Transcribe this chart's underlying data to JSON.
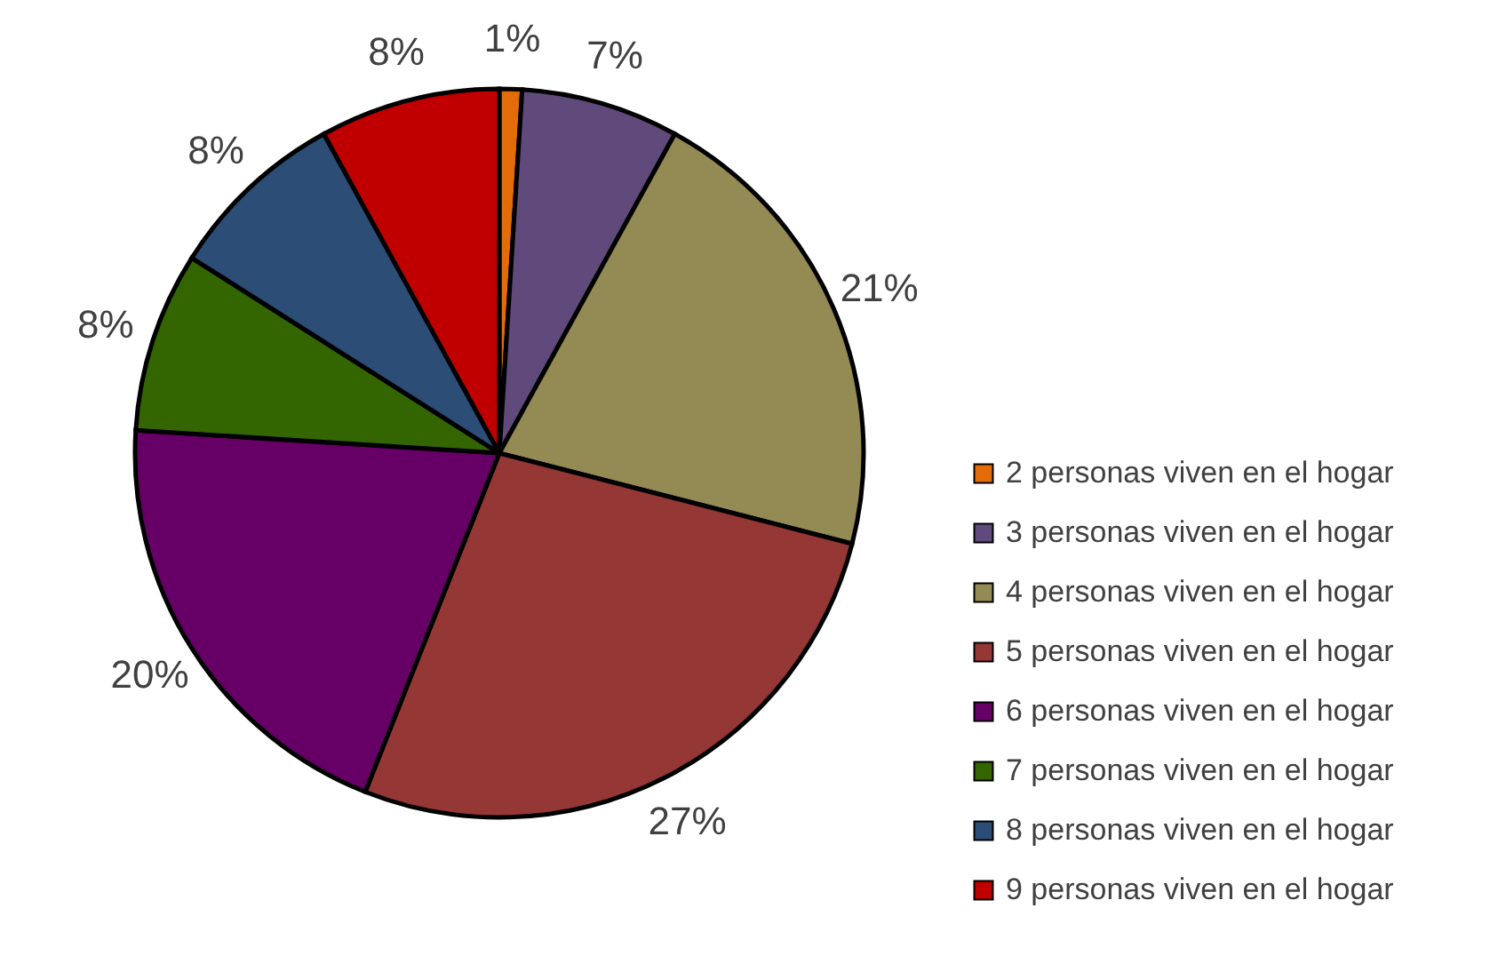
{
  "chart_data": {
    "type": "pie",
    "categories": [
      "2 personas viven en el hogar",
      "3 personas viven en el hogar",
      "4 personas viven en el hogar",
      "5 personas viven en el hogar",
      "6 personas viven en el hogar",
      "7 personas viven en el hogar",
      "8 personas viven en el hogar",
      "9 personas viven en el hogar"
    ],
    "values": [
      1,
      7,
      21,
      27,
      20,
      8,
      8,
      8
    ],
    "value_labels": [
      "1%",
      "7%",
      "21%",
      "27%",
      "20%",
      "8%",
      "8%",
      "8%"
    ],
    "colors": [
      "#e36c09",
      "#604a7b",
      "#948a54",
      "#953735",
      "#660066",
      "#336600",
      "#2c4d75",
      "#c00000"
    ],
    "legend": "right"
  }
}
